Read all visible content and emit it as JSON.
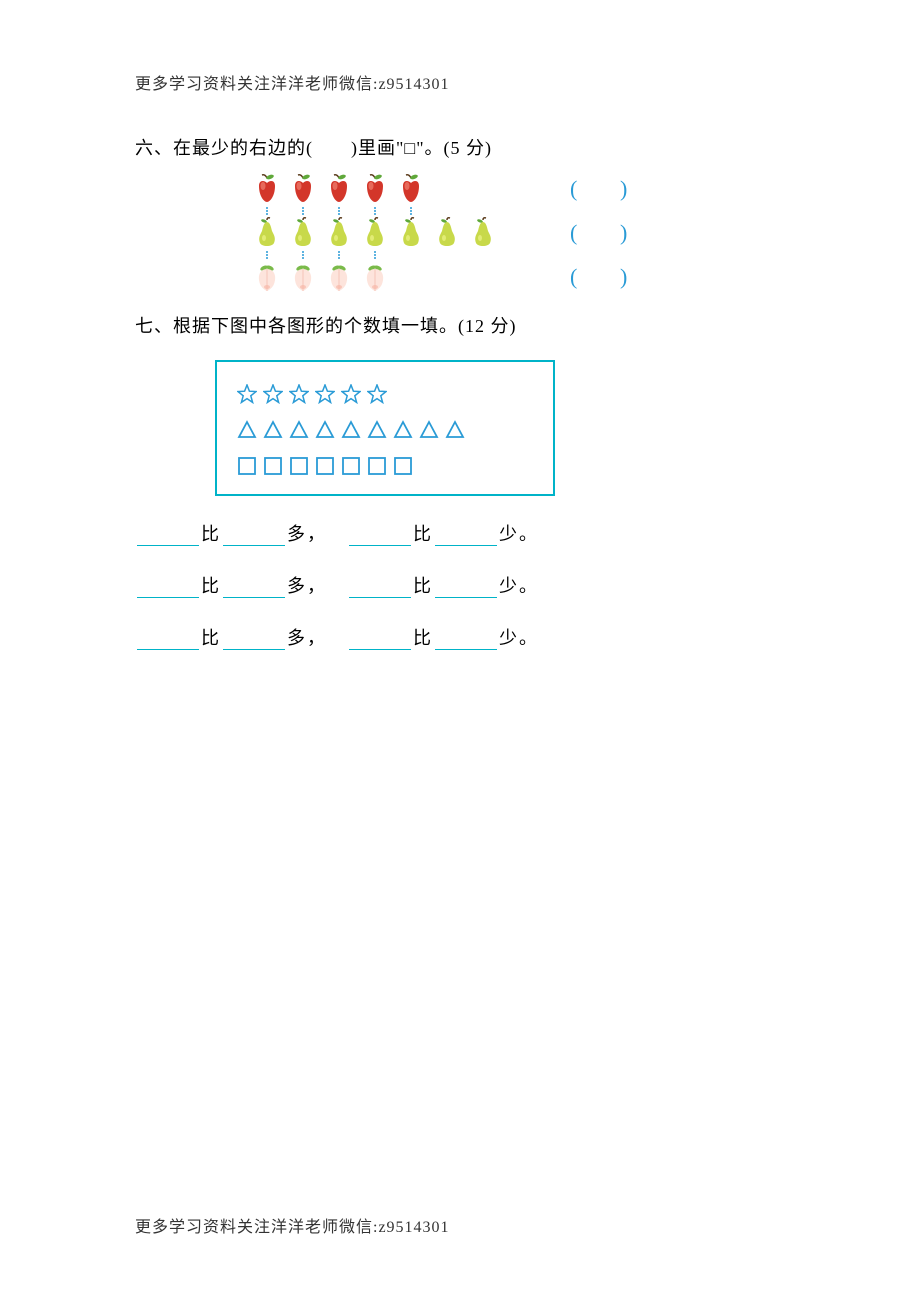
{
  "header": "更多学习资料关注洋洋老师微信:z9514301",
  "footer": "更多学习资料关注洋洋老师微信:z9514301",
  "q6": {
    "title": "六、在最少的右边的(　　)里画\"□\"。(5 分)",
    "rows": [
      {
        "type": "apple",
        "count": 5
      },
      {
        "type": "pear",
        "count": 7
      },
      {
        "type": "peach",
        "count": 4
      }
    ],
    "paren_color": "#2a9bd6"
  },
  "q7": {
    "title": "七、根据下图中各图形的个数填一填。(12 分)",
    "box_border": "#00b3c8",
    "shapes": {
      "star": {
        "count": 6,
        "color": "#2a9bd6"
      },
      "triangle": {
        "count": 9,
        "color": "#2a9bd6"
      },
      "square": {
        "count": 7,
        "color": "#2a9bd6"
      }
    },
    "fill": {
      "bi": "比",
      "duo": "多，",
      "shao": "少。",
      "underline_color": "#00b3c8"
    }
  }
}
